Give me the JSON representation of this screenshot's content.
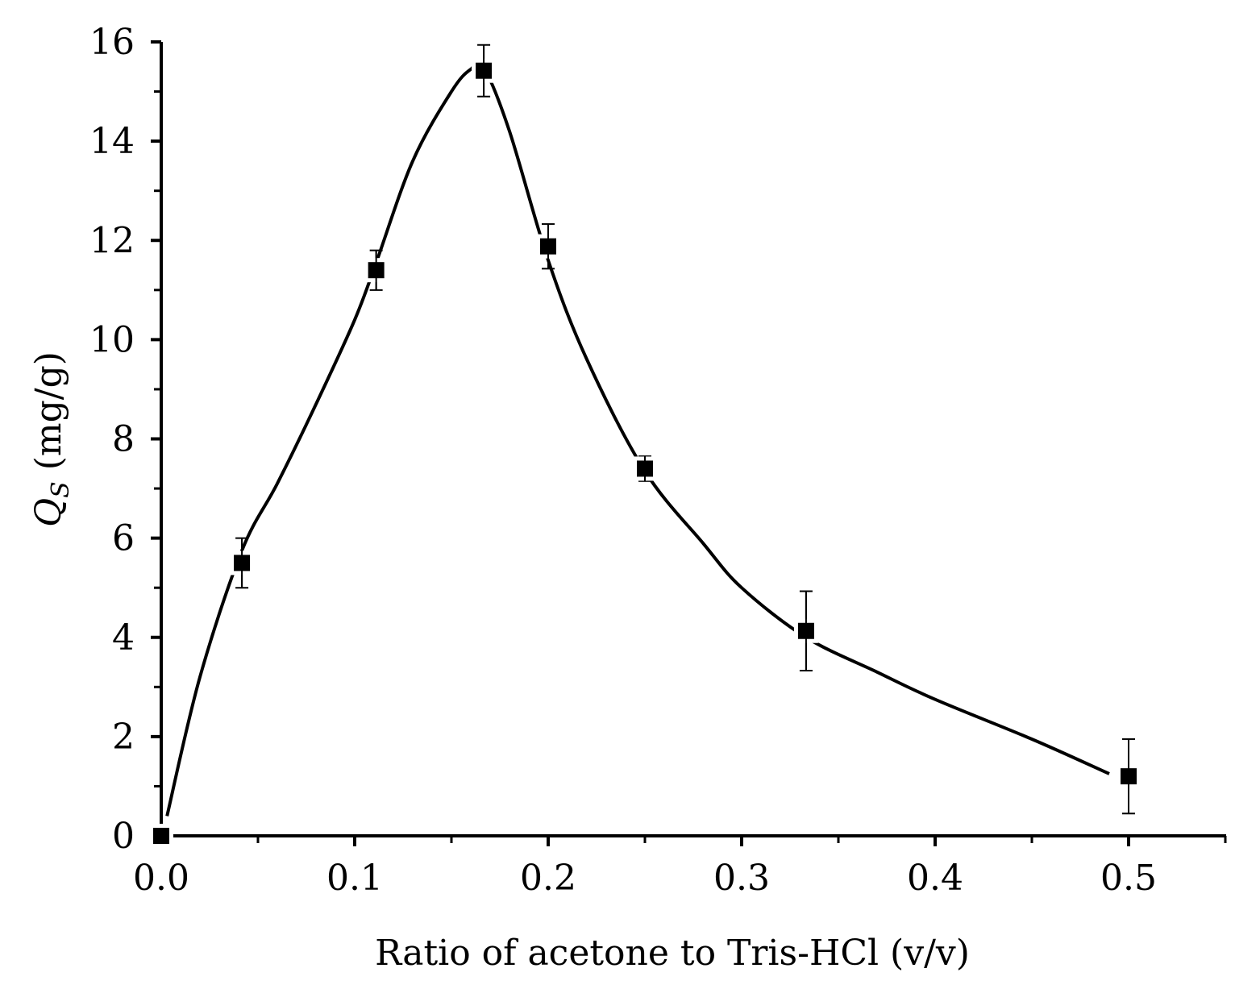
{
  "chart_data": {
    "type": "scatter",
    "title": "",
    "xlabel": "Ratio of acetone to Tris-HCl (v/v)",
    "ylabel": {
      "symbol": "Q",
      "subscript": "S",
      "unit": " (mg/g)"
    },
    "xlim": [
      0.0,
      0.55
    ],
    "ylim": [
      0,
      16
    ],
    "x_major_ticks": [
      0.0,
      0.1,
      0.2,
      0.3,
      0.4,
      0.5
    ],
    "x_tick_labels": [
      "0.0",
      "0.1",
      "0.2",
      "0.3",
      "0.4",
      "0.5"
    ],
    "x_minor_ticks": [
      0.05,
      0.15,
      0.25,
      0.35,
      0.45,
      0.55
    ],
    "y_major_ticks": [
      0,
      2,
      4,
      6,
      8,
      10,
      12,
      14,
      16
    ],
    "y_tick_labels": [
      "0",
      "2",
      "4",
      "6",
      "8",
      "10",
      "12",
      "14",
      "16"
    ],
    "y_minor_ticks": [
      1,
      3,
      5,
      7,
      9,
      11,
      13,
      15
    ],
    "grid": false,
    "series": [
      {
        "name": "Qs",
        "marker": "square",
        "color": "#000000",
        "points": [
          {
            "x": 0.0,
            "y": 0.0,
            "err": 0.0
          },
          {
            "x": 0.0417,
            "y": 5.5,
            "err": 0.5
          },
          {
            "x": 0.1111,
            "y": 11.4,
            "err": 0.4
          },
          {
            "x": 0.1667,
            "y": 15.42,
            "err": 0.52
          },
          {
            "x": 0.2,
            "y": 11.88,
            "err": 0.45
          },
          {
            "x": 0.25,
            "y": 7.4,
            "err": 0.25
          },
          {
            "x": 0.3333,
            "y": 4.13,
            "err": 0.8
          },
          {
            "x": 0.5,
            "y": 1.2,
            "err": 0.75
          }
        ]
      }
    ],
    "fit_curve": {
      "x": [
        0.003,
        0.02,
        0.0417,
        0.06,
        0.08,
        0.1,
        0.1111,
        0.13,
        0.15,
        0.16,
        0.1667,
        0.18,
        0.2,
        0.22,
        0.25,
        0.28,
        0.3,
        0.3333,
        0.37,
        0.4,
        0.45,
        0.49
      ],
      "y": [
        0.4,
        3.2,
        5.75,
        7.1,
        8.7,
        10.4,
        11.55,
        13.6,
        15.0,
        15.45,
        15.48,
        14.2,
        11.6,
        9.6,
        7.35,
        5.9,
        5.0,
        4.0,
        3.3,
        2.75,
        1.95,
        1.25
      ]
    }
  }
}
